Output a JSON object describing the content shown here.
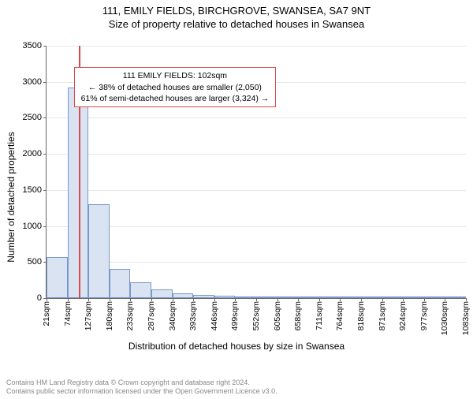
{
  "titles": {
    "line1": "111, EMILY FIELDS, BIRCHGROVE, SWANSEA, SA7 9NT",
    "line2": "Size of property relative to detached houses in Swansea"
  },
  "chart": {
    "type": "histogram",
    "ylabel": "Number of detached properties",
    "xlabel": "Distribution of detached houses by size in Swansea",
    "ylim": [
      0,
      3500
    ],
    "ytick_step": 500,
    "yticks": [
      0,
      500,
      1000,
      1500,
      2000,
      2500,
      3000,
      3500
    ],
    "xticks": [
      "21sqm",
      "74sqm",
      "127sqm",
      "180sqm",
      "233sqm",
      "287sqm",
      "340sqm",
      "393sqm",
      "446sqm",
      "499sqm",
      "552sqm",
      "605sqm",
      "658sqm",
      "711sqm",
      "764sqm",
      "818sqm",
      "871sqm",
      "924sqm",
      "977sqm",
      "1030sqm",
      "1083sqm"
    ],
    "x_range": [
      21,
      1083
    ],
    "bar_color": "#d9e3f2",
    "bar_border_color": "#7a98c9",
    "grid_color": "#e6e6e6",
    "axis_color": "#666666",
    "background_color": "#ffffff",
    "bars": [
      {
        "x0": 21,
        "x1": 74,
        "value": 570
      },
      {
        "x0": 74,
        "x1": 127,
        "value": 2920
      },
      {
        "x0": 127,
        "x1": 180,
        "value": 1300
      },
      {
        "x0": 180,
        "x1": 233,
        "value": 400
      },
      {
        "x0": 233,
        "x1": 287,
        "value": 220
      },
      {
        "x0": 287,
        "x1": 340,
        "value": 120
      },
      {
        "x0": 340,
        "x1": 393,
        "value": 65
      },
      {
        "x0": 393,
        "x1": 446,
        "value": 45
      },
      {
        "x0": 446,
        "x1": 499,
        "value": 30
      },
      {
        "x0": 499,
        "x1": 552,
        "value": 22
      },
      {
        "x0": 552,
        "x1": 605,
        "value": 16
      },
      {
        "x0": 605,
        "x1": 658,
        "value": 12
      },
      {
        "x0": 658,
        "x1": 711,
        "value": 10
      },
      {
        "x0": 711,
        "x1": 764,
        "value": 8
      },
      {
        "x0": 764,
        "x1": 818,
        "value": 6
      },
      {
        "x0": 818,
        "x1": 871,
        "value": 5
      },
      {
        "x0": 871,
        "x1": 924,
        "value": 4
      },
      {
        "x0": 924,
        "x1": 977,
        "value": 4
      },
      {
        "x0": 977,
        "x1": 1030,
        "value": 3
      },
      {
        "x0": 1030,
        "x1": 1083,
        "value": 3
      }
    ],
    "marker": {
      "x": 102,
      "color": "#d94a4a"
    },
    "annotation": {
      "line1": "111 EMILY FIELDS: 102sqm",
      "line2": "← 38% of detached houses are smaller (2,050)",
      "line3": "61% of semi-detached houses are larger (3,324) →",
      "border_color": "#d94a4a",
      "top_value": 3200,
      "left_value": 90
    }
  },
  "footer": {
    "line1": "Contains HM Land Registry data © Crown copyright and database right 2024.",
    "line2": "Contains public sector information licensed under the Open Government Licence v3.0.",
    "color": "#888888"
  }
}
